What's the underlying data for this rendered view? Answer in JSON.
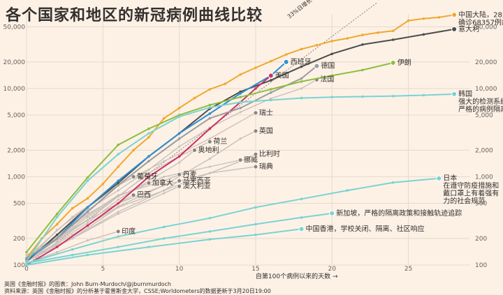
{
  "title": "各个国家和地区的新冠病例曲线比较",
  "footer": {
    "credit": "英国《金融时报》的图表：John Burn-Murdoch/@jburnmurdoch",
    "source": "资料来源：英国《金融时报》的分析基于霍普斯金大学，CSSE;Worldometers的数据更新于3月20日19:00"
  },
  "colors": {
    "background": "#fdf1e6",
    "grid": "#e6d9ce",
    "ghost": "#c9c1ba",
    "china": "#f0a830",
    "italy": "#4d4d4d",
    "spain": "#2f8fd0",
    "us": "#cc3366",
    "germany": "#9c9c9c",
    "iran": "#8cbf3f",
    "korea": "#7ad3d3",
    "ghost_labels": "#555555"
  },
  "chart_data": {
    "type": "line",
    "title": "各个国家和地区的新冠病例曲线比较",
    "xlabel": "自第100个病例以来的天数",
    "ylabel": "",
    "xlim": [
      0,
      29
    ],
    "ylim": [
      100,
      70000
    ],
    "yscale": "log",
    "x_ticks": [
      0,
      5,
      10,
      15,
      20,
      25
    ],
    "y_ticks": [
      100,
      200,
      500,
      1000,
      2000,
      5000,
      10000,
      20000,
      50000
    ],
    "y_tick_labels": [
      "100",
      "200",
      "500",
      "1,000",
      "2,000",
      "5,000",
      "10,000",
      "20,000",
      "50,000"
    ],
    "grid": true,
    "reference_line": {
      "label": "33%日增长",
      "start": [
        0,
        100
      ],
      "rate": 1.33
    },
    "series": [
      {
        "name": "中国大陆，28天内确诊68357例病例",
        "color_key": "china",
        "label_lines": [
          "中国大陆，28天内",
          "确诊68357例病例"
        ],
        "end_marker": true,
        "x": [
          0,
          1,
          2,
          3,
          4,
          5,
          6,
          7,
          8,
          9,
          10,
          11,
          12,
          13,
          14,
          15,
          16,
          17,
          18,
          19,
          20,
          21,
          22,
          23,
          24,
          25,
          26,
          27,
          28
        ],
        "y": [
          120,
          200,
          290,
          440,
          570,
          830,
          1300,
          2000,
          2800,
          4600,
          6000,
          7800,
          9800,
          11300,
          14400,
          17200,
          20400,
          24300,
          28000,
          31000,
          34500,
          37000,
          40500,
          43000,
          45000,
          58800,
          62000,
          64000,
          68357
        ]
      },
      {
        "name": "意大利",
        "color_key": "italy",
        "label_lines": [
          "意大利"
        ],
        "end_marker": true,
        "x": [
          0,
          2,
          4,
          6,
          8,
          10,
          12,
          14,
          16,
          18,
          20,
          22,
          24,
          26,
          28
        ],
        "y": [
          110,
          220,
          450,
          850,
          1700,
          3100,
          5900,
          9200,
          12400,
          17700,
          24700,
          31500,
          35700,
          41000,
          47000
        ]
      },
      {
        "name": "西班牙",
        "color_key": "spain",
        "label_lines": [
          "西班牙"
        ],
        "end_marker": true,
        "x": [
          0,
          2,
          4,
          6,
          8,
          10,
          12,
          14,
          16,
          17
        ],
        "y": [
          115,
          200,
          450,
          900,
          1700,
          3100,
          5200,
          8800,
          14000,
          19980
        ]
      },
      {
        "name": "美国",
        "color_key": "us",
        "label_lines": [
          "美国"
        ],
        "end_marker": true,
        "x": [
          0,
          2,
          4,
          6,
          8,
          10,
          12,
          14,
          15,
          16
        ],
        "y": [
          100,
          160,
          280,
          500,
          1000,
          1700,
          3500,
          7000,
          10000,
          14000
        ]
      },
      {
        "name": "德国",
        "color_key": "germany",
        "label_lines": [
          "德国"
        ],
        "end_marker": true,
        "x": [
          0,
          2,
          4,
          6,
          8,
          10,
          12,
          14,
          16,
          18,
          19
        ],
        "y": [
          120,
          200,
          400,
          800,
          1500,
          2700,
          4600,
          6000,
          9000,
          13000,
          18000
        ]
      },
      {
        "name": "伊朗",
        "color_key": "iran",
        "label_lines": [
          "伊朗"
        ],
        "end_marker": true,
        "x": [
          0,
          2,
          4,
          6,
          8,
          10,
          12,
          14,
          16,
          18,
          20,
          22,
          24
        ],
        "y": [
          140,
          380,
          980,
          2300,
          3500,
          5000,
          6500,
          8000,
          9800,
          12000,
          14000,
          16200,
          19600
        ]
      },
      {
        "name": "韩国",
        "color_key": "korea",
        "label_lines": [
          "韩国",
          "强大的检测系统、",
          "严格的病例隔离"
        ],
        "end_marker": true,
        "x": [
          0,
          2,
          4,
          6,
          8,
          10,
          12,
          14,
          16,
          18,
          20,
          22,
          24,
          26,
          28
        ],
        "y": [
          110,
          350,
          900,
          1800,
          3100,
          4800,
          6100,
          7000,
          7400,
          7800,
          8000,
          8100,
          8200,
          8400,
          8650
        ]
      },
      {
        "name": "日本",
        "color_key": "korea",
        "label_lines": [
          "日本",
          "在遵守防疫措施和",
          "戴口罩上有着强有",
          "力的社会规范"
        ],
        "end_marker": true,
        "x": [
          0,
          3,
          6,
          9,
          12,
          15,
          18,
          21,
          24,
          27
        ],
        "y": [
          105,
          150,
          210,
          270,
          340,
          450,
          560,
          700,
          860,
          960
        ]
      },
      {
        "name": "新加坡，严格的隔离政策和接触轨迹追踪",
        "color_key": "korea",
        "label_lines": [
          "新加坡，严格的隔离政策和接触轨迹追踪"
        ],
        "end_marker": true,
        "x": [
          0,
          3,
          6,
          9,
          12,
          15,
          18,
          20
        ],
        "y": [
          105,
          130,
          160,
          200,
          240,
          290,
          345,
          385
        ]
      },
      {
        "name": "中国香港，学校关闭、隔离、社区响应",
        "color_key": "korea",
        "label_lines": [
          "中国香港，学校关闭、隔离、社区响应"
        ],
        "end_marker": true,
        "x": [
          0,
          4,
          8,
          12,
          15,
          18
        ],
        "y": [
          100,
          130,
          160,
          195,
          220,
          256
        ]
      }
    ],
    "ghost_series": [
      {
        "name": "法国",
        "x": [
          0,
          2,
          4,
          6,
          8,
          10,
          12,
          14,
          16,
          18,
          19
        ],
        "y": [
          130,
          200,
          420,
          700,
          1200,
          2200,
          3600,
          5400,
          7700,
          10000,
          12600
        ]
      },
      {
        "name": "瑞士",
        "x": [
          0,
          3,
          6,
          9,
          12,
          15
        ],
        "y": [
          120,
          350,
          800,
          1500,
          2700,
          5300
        ]
      },
      {
        "name": "英国",
        "x": [
          0,
          3,
          6,
          9,
          12,
          14,
          15
        ],
        "y": [
          110,
          220,
          460,
          800,
          1600,
          2700,
          3300
        ]
      },
      {
        "name": "荷兰",
        "x": [
          0,
          2,
          4,
          6,
          8,
          10,
          12
        ],
        "y": [
          120,
          190,
          320,
          600,
          1100,
          1700,
          2500
        ]
      },
      {
        "name": "奥地利",
        "x": [
          0,
          2,
          4,
          6,
          8,
          10,
          11
        ],
        "y": [
          110,
          180,
          300,
          550,
          900,
          1450,
          2000
        ]
      },
      {
        "name": "比利时",
        "x": [
          0,
          3,
          6,
          9,
          12,
          14,
          15
        ],
        "y": [
          110,
          200,
          400,
          700,
          1100,
          1500,
          1800
        ]
      },
      {
        "name": "挪威",
        "x": [
          0,
          3,
          6,
          9,
          12,
          14
        ],
        "y": [
          110,
          300,
          600,
          1000,
          1300,
          1550
        ]
      },
      {
        "name": "瑞典",
        "x": [
          0,
          3,
          6,
          9,
          12,
          15
        ],
        "y": [
          110,
          260,
          500,
          800,
          1100,
          1300
        ]
      },
      {
        "name": "丹麦",
        "x": [
          0,
          3,
          6,
          9,
          10
        ],
        "y": [
          110,
          280,
          620,
          900,
          1060
        ]
      },
      {
        "name": "马来西亚",
        "x": [
          0,
          3,
          6,
          9,
          10
        ],
        "y": [
          120,
          200,
          450,
          700,
          900
        ]
      },
      {
        "name": "澳大利亚",
        "x": [
          0,
          3,
          6,
          9,
          10
        ],
        "y": [
          110,
          200,
          380,
          650,
          780
        ]
      },
      {
        "name": "葡萄牙",
        "x": [
          0,
          2,
          4,
          6,
          7
        ],
        "y": [
          110,
          250,
          450,
          800,
          1000
        ]
      },
      {
        "name": "加拿大",
        "x": [
          0,
          2,
          4,
          6,
          8
        ],
        "y": [
          110,
          200,
          350,
          600,
          850
        ]
      },
      {
        "name": "巴西",
        "x": [
          0,
          2,
          4,
          6,
          7
        ],
        "y": [
          110,
          200,
          320,
          500,
          620
        ]
      },
      {
        "name": "印度",
        "x": [
          0,
          2,
          4,
          6
        ],
        "y": [
          105,
          140,
          190,
          240
        ]
      }
    ]
  }
}
